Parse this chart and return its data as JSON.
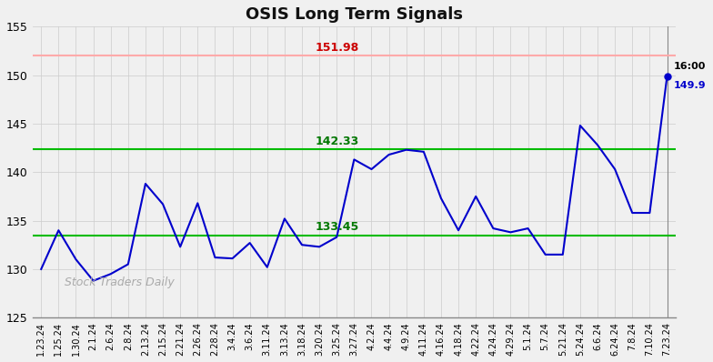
{
  "title": "OSIS Long Term Signals",
  "x_labels": [
    "1.23.24",
    "1.25.24",
    "1.30.24",
    "2.1.24",
    "2.6.24",
    "2.8.24",
    "2.13.24",
    "2.15.24",
    "2.21.24",
    "2.26.24",
    "2.28.24",
    "3.4.24",
    "3.6.24",
    "3.11.24",
    "3.13.24",
    "3.18.24",
    "3.20.24",
    "3.25.24",
    "3.27.24",
    "4.2.24",
    "4.4.24",
    "4.9.24",
    "4.11.24",
    "4.16.24",
    "4.18.24",
    "4.22.24",
    "4.24.24",
    "4.29.24",
    "5.1.24",
    "5.7.24",
    "5.21.24",
    "5.24.24",
    "6.6.24",
    "6.24.24",
    "7.8.24",
    "7.10.24",
    "7.23.24"
  ],
  "values": [
    130.0,
    134.0,
    131.0,
    128.8,
    129.5,
    130.5,
    138.8,
    136.7,
    132.3,
    136.8,
    131.2,
    131.1,
    132.7,
    130.2,
    135.2,
    132.5,
    132.3,
    133.3,
    141.3,
    140.3,
    141.8,
    142.3,
    142.1,
    137.3,
    134.0,
    137.5,
    134.2,
    133.8,
    134.2,
    131.5,
    131.5,
    144.8,
    142.8,
    140.3,
    135.8,
    135.8,
    149.9
  ],
  "red_line": 151.98,
  "green_line_upper": 142.33,
  "green_line_lower": 133.45,
  "red_label": "151.98",
  "green_upper_label": "142.33",
  "green_lower_label": "133.45",
  "last_price": 149.9,
  "last_time": "16:00",
  "ylim_min": 125,
  "ylim_max": 155,
  "yticks": [
    125,
    130,
    135,
    140,
    145,
    150,
    155
  ],
  "watermark": "Stock Traders Daily",
  "line_color": "#0000cc",
  "red_line_color": "#ffaaaa",
  "green_line_color": "#00bb00",
  "background_color": "#f0f0f0",
  "grid_color": "#cccccc"
}
